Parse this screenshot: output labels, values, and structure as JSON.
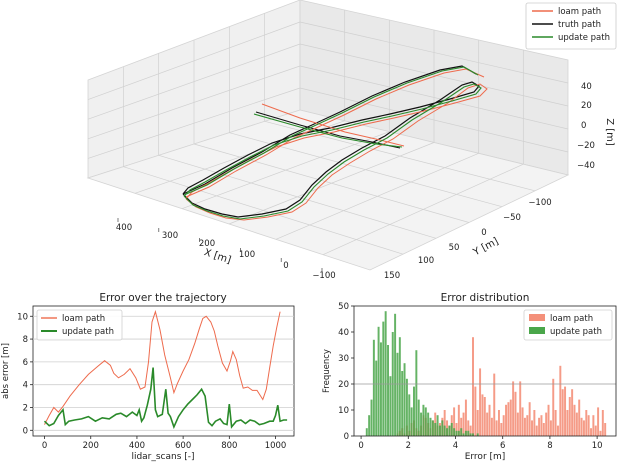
{
  "chart_data": [
    {
      "type": "line",
      "projection": "3d",
      "xlabel": "X [m]",
      "ylabel": "Y [m]",
      "zlabel": "Z [m]",
      "x_ticks": [
        "400",
        "300",
        "200",
        "100",
        "0",
        "−100"
      ],
      "y_ticks": [
        "−100",
        "−50",
        "0",
        "50",
        "100",
        "150"
      ],
      "z_ticks": [
        "40",
        "20",
        "0",
        "−20",
        "−40"
      ],
      "legend": {
        "placement": "top-right",
        "entries": [
          {
            "label": "loam path",
            "color": "#ee6b4d"
          },
          {
            "label": "truth path",
            "color": "#111111"
          },
          {
            "label": "update path",
            "color": "#2a8a2a"
          }
        ]
      },
      "grid": true
    },
    {
      "type": "line",
      "title": "Error over the trajectory",
      "xlabel": "lidar_scans [-]",
      "ylabel": "abs error [m]",
      "xlim": [
        -50,
        1080
      ],
      "ylim": [
        -0.5,
        10.9
      ],
      "x_ticks": [
        0,
        200,
        400,
        600,
        800,
        1000
      ],
      "y_ticks": [
        0,
        2,
        4,
        6,
        8,
        10
      ],
      "grid": "horizontal",
      "legend": "top-left",
      "series": [
        {
          "name": "loam path",
          "color": "#ee6b4d",
          "points": [
            [
              0,
              0.5
            ],
            [
              20,
              1.3
            ],
            [
              40,
              2.0
            ],
            [
              60,
              1.6
            ],
            [
              80,
              2.1
            ],
            [
              110,
              3.0
            ],
            [
              150,
              4.0
            ],
            [
              190,
              4.9
            ],
            [
              230,
              5.6
            ],
            [
              260,
              6.1
            ],
            [
              285,
              5.7
            ],
            [
              300,
              5.0
            ],
            [
              320,
              4.6
            ],
            [
              345,
              4.9
            ],
            [
              370,
              5.4
            ],
            [
              395,
              4.6
            ],
            [
              415,
              3.6
            ],
            [
              435,
              3.8
            ],
            [
              450,
              6.0
            ],
            [
              465,
              9.5
            ],
            [
              480,
              10.4
            ],
            [
              500,
              8.8
            ],
            [
              520,
              6.6
            ],
            [
              545,
              4.6
            ],
            [
              560,
              3.3
            ],
            [
              575,
              4.1
            ],
            [
              600,
              5.2
            ],
            [
              625,
              6.2
            ],
            [
              650,
              7.6
            ],
            [
              670,
              8.9
            ],
            [
              685,
              9.8
            ],
            [
              700,
              10.0
            ],
            [
              720,
              9.5
            ],
            [
              735,
              8.7
            ],
            [
              750,
              7.4
            ],
            [
              770,
              5.9
            ],
            [
              790,
              5.2
            ],
            [
              805,
              6.1
            ],
            [
              815,
              6.9
            ],
            [
              830,
              6.2
            ],
            [
              845,
              4.8
            ],
            [
              860,
              3.7
            ],
            [
              880,
              3.8
            ],
            [
              900,
              3.5
            ],
            [
              920,
              3.5
            ],
            [
              945,
              2.7
            ],
            [
              960,
              3.6
            ],
            [
              975,
              5.5
            ],
            [
              990,
              7.4
            ],
            [
              1005,
              9.0
            ],
            [
              1020,
              10.4
            ]
          ]
        },
        {
          "name": "update path",
          "color": "#2a8a2a",
          "points": [
            [
              0,
              0.8
            ],
            [
              20,
              0.4
            ],
            [
              40,
              0.6
            ],
            [
              60,
              1.3
            ],
            [
              80,
              1.8
            ],
            [
              90,
              0.5
            ],
            [
              105,
              0.8
            ],
            [
              130,
              0.9
            ],
            [
              160,
              1.0
            ],
            [
              190,
              1.2
            ],
            [
              220,
              0.8
            ],
            [
              250,
              1.1
            ],
            [
              280,
              1.0
            ],
            [
              310,
              1.4
            ],
            [
              330,
              1.5
            ],
            [
              355,
              1.2
            ],
            [
              380,
              1.6
            ],
            [
              400,
              1.3
            ],
            [
              410,
              1.8
            ],
            [
              420,
              0.8
            ],
            [
              430,
              1.1
            ],
            [
              445,
              2.2
            ],
            [
              460,
              3.6
            ],
            [
              470,
              5.5
            ],
            [
              480,
              1.8
            ],
            [
              490,
              1.2
            ],
            [
              510,
              1.4
            ],
            [
              525,
              3.6
            ],
            [
              535,
              1.5
            ],
            [
              545,
              1.2
            ],
            [
              560,
              0.3
            ],
            [
              580,
              1.2
            ],
            [
              600,
              1.8
            ],
            [
              620,
              2.3
            ],
            [
              640,
              2.7
            ],
            [
              660,
              3.1
            ],
            [
              680,
              3.6
            ],
            [
              695,
              3.0
            ],
            [
              710,
              0.7
            ],
            [
              725,
              0.4
            ],
            [
              740,
              0.8
            ],
            [
              760,
              1.0
            ],
            [
              775,
              0.6
            ],
            [
              790,
              0.5
            ],
            [
              800,
              2.3
            ],
            [
              810,
              0.3
            ],
            [
              830,
              0.8
            ],
            [
              850,
              0.9
            ],
            [
              870,
              0.6
            ],
            [
              890,
              0.9
            ],
            [
              910,
              0.8
            ],
            [
              930,
              0.5
            ],
            [
              950,
              0.6
            ],
            [
              975,
              0.8
            ],
            [
              990,
              0.8
            ],
            [
              1000,
              1.3
            ],
            [
              1010,
              2.2
            ],
            [
              1020,
              0.8
            ],
            [
              1035,
              0.9
            ],
            [
              1050,
              0.9
            ]
          ]
        }
      ]
    },
    {
      "type": "bar",
      "subtype": "histogram",
      "title": "Error distribution",
      "xlabel": "Error [m]",
      "ylabel": "Frequency",
      "xlim": [
        -0.3,
        10.8
      ],
      "ylim": [
        0,
        50
      ],
      "x_ticks": [
        0,
        2,
        4,
        6,
        8,
        10
      ],
      "y_ticks": [
        0,
        10,
        20,
        30,
        40,
        50
      ],
      "reference_line": 20,
      "legend": "top-right",
      "bin_width": 0.1,
      "series": [
        {
          "name": "loam path",
          "color": "#f4907a",
          "values": [
            0,
            0,
            0,
            0,
            0,
            0,
            0,
            0,
            0,
            0,
            0,
            0,
            0,
            0,
            0,
            1,
            2,
            3,
            1,
            4,
            2,
            5,
            6,
            3,
            2,
            4,
            8,
            7,
            5,
            3,
            6,
            9,
            4,
            5,
            7,
            10,
            6,
            4,
            8,
            11,
            5,
            12,
            7,
            9,
            14,
            6,
            4,
            38,
            19,
            10,
            26,
            16,
            15,
            9,
            12,
            7,
            24,
            6,
            10,
            5,
            8,
            12,
            13,
            14,
            21,
            17,
            9,
            21,
            11,
            7,
            8,
            13,
            6,
            10,
            4,
            7,
            8,
            5,
            9,
            12,
            6,
            22,
            10,
            4,
            27,
            18,
            19,
            10,
            15,
            18,
            12,
            9,
            14,
            7,
            6,
            10,
            8,
            3,
            8,
            4,
            11,
            2,
            10,
            5
          ]
        },
        {
          "name": "update path",
          "color": "#4aa64a",
          "values": [
            0,
            0,
            3,
            8,
            14,
            37,
            29,
            42,
            36,
            44,
            48,
            35,
            23,
            40,
            47,
            32,
            38,
            25,
            28,
            22,
            16,
            11,
            19,
            33,
            14,
            9,
            12,
            11,
            9,
            7,
            6,
            5,
            8,
            4,
            6,
            4,
            3,
            4,
            5,
            3,
            2,
            2,
            3,
            1,
            2,
            2,
            1,
            1,
            0,
            1,
            0,
            0,
            0,
            0,
            0,
            0,
            0,
            0,
            0,
            0,
            0,
            0,
            0,
            0,
            0,
            0,
            0,
            0,
            0,
            0,
            0,
            0,
            0,
            0,
            0,
            0,
            0,
            0,
            0,
            0,
            0,
            0,
            0,
            0,
            0,
            0,
            0,
            0,
            0,
            0,
            0,
            0,
            0,
            0,
            0,
            0,
            0,
            0,
            0,
            0,
            0,
            0,
            0,
            0,
            0
          ]
        }
      ]
    }
  ]
}
